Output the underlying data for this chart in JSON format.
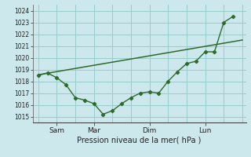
{
  "xlabel": "Pression niveau de la mer( hPa )",
  "ylim": [
    1014.5,
    1024.5
  ],
  "yticks": [
    1015,
    1016,
    1017,
    1018,
    1019,
    1020,
    1021,
    1022,
    1023,
    1024
  ],
  "background_color": "#cce8ec",
  "grid_color": "#99cccc",
  "line_color": "#2d6b2d",
  "x_tick_positions": [
    1,
    3,
    6,
    9
  ],
  "x_tick_labels": [
    "Sam",
    "Mar",
    "Dim",
    "Lun"
  ],
  "x_vline_positions": [
    0,
    1,
    2,
    3,
    4,
    5,
    6,
    7,
    8,
    9,
    10,
    11
  ],
  "trend_x": [
    0,
    11
  ],
  "trend_y": [
    1018.55,
    1021.5
  ],
  "jagged_x": [
    0,
    0.5,
    1.0,
    1.5,
    2.0,
    2.5,
    3.0,
    3.5,
    4.0,
    4.5,
    5.0,
    5.5,
    6.0,
    6.5,
    7.0,
    7.5,
    8.0,
    8.5,
    9.0,
    9.5,
    10.0,
    10.5
  ],
  "jagged_y": [
    1018.5,
    1018.7,
    1018.3,
    1017.7,
    1016.6,
    1016.4,
    1016.1,
    1015.2,
    1015.5,
    1016.1,
    1016.6,
    1017.0,
    1017.1,
    1017.0,
    1018.0,
    1018.8,
    1019.5,
    1019.7,
    1020.5,
    1020.5,
    1023.0,
    1023.5
  ],
  "xlim": [
    -0.3,
    11.2
  ],
  "figsize": [
    3.2,
    2.0
  ],
  "dpi": 100
}
